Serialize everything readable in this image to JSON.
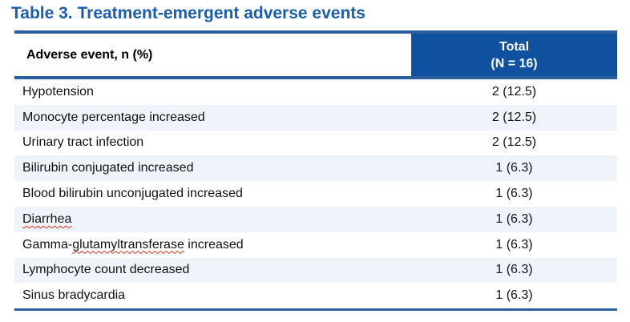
{
  "title": "Table 3. Treatment-emergent adverse events",
  "colors": {
    "title_blue": "#1B5EAC",
    "rule_blue": "#2A5E9C",
    "header_fill": "#0F519F",
    "stripe_blue": "#EFF3FA",
    "text_black": "#111111",
    "spellcheck_red": "#E0301E"
  },
  "table": {
    "columns": {
      "event": {
        "label": "Adverse event, n (%)"
      },
      "total": {
        "line1": "Total",
        "line2": "(N = 16)"
      }
    },
    "rows": [
      {
        "event_parts": [
          {
            "text": "Hypotension",
            "wavy": false
          }
        ],
        "value": "2 (12.5)"
      },
      {
        "event_parts": [
          {
            "text": "Monocyte percentage increased",
            "wavy": false
          }
        ],
        "value": "2 (12.5)"
      },
      {
        "event_parts": [
          {
            "text": "Urinary tract infection",
            "wavy": false
          }
        ],
        "value": "2 (12.5)"
      },
      {
        "event_parts": [
          {
            "text": "Bilirubin conjugated increased",
            "wavy": false
          }
        ],
        "value": "1 (6.3)"
      },
      {
        "event_parts": [
          {
            "text": "Blood bilirubin unconjugated increased",
            "wavy": false
          }
        ],
        "value": "1 (6.3)"
      },
      {
        "event_parts": [
          {
            "text": "Diarrhea",
            "wavy": true
          }
        ],
        "value": "1 (6.3)"
      },
      {
        "event_parts": [
          {
            "text": "Gamma-",
            "wavy": false
          },
          {
            "text": "glutamyltransferase",
            "wavy": true
          },
          {
            "text": " increased",
            "wavy": false
          }
        ],
        "value": "1 (6.3)"
      },
      {
        "event_parts": [
          {
            "text": "Lymphocyte count decreased",
            "wavy": false
          }
        ],
        "value": "1 (6.3)"
      },
      {
        "event_parts": [
          {
            "text": "Sinus bradycardia",
            "wavy": false
          }
        ],
        "value": "1 (6.3)"
      }
    ]
  }
}
